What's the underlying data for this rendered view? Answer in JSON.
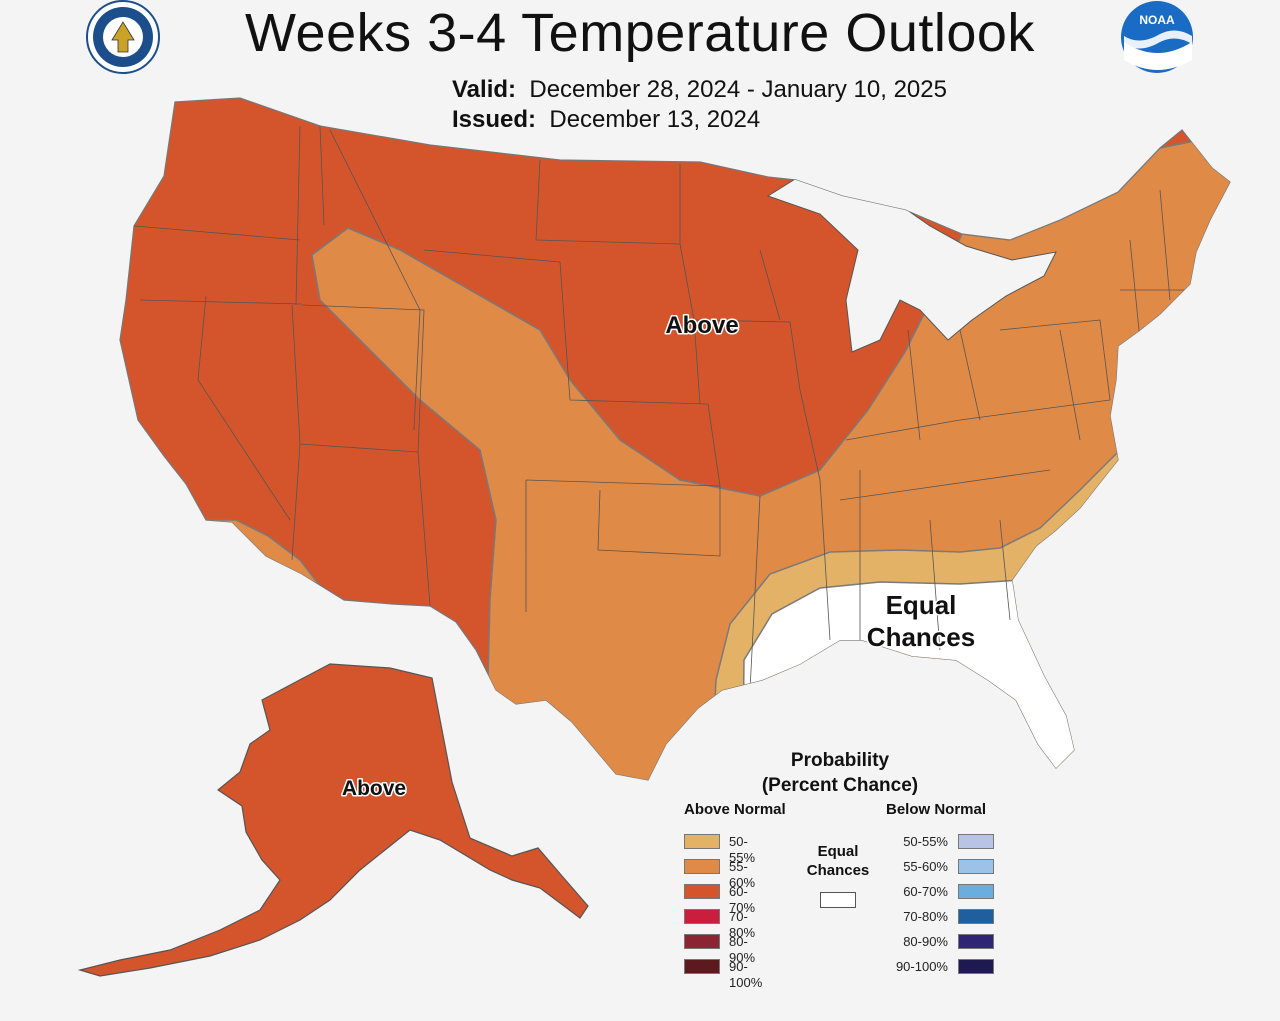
{
  "header": {
    "title": "Weeks 3-4 Temperature Outlook",
    "valid_label": "Valid:",
    "valid_range": "December 28, 2024 - January 10, 2025",
    "issued_label": "Issued:",
    "issued_date": "December 13, 2024"
  },
  "logos": {
    "left": "department-of-commerce-seal",
    "right": "noaa-logo",
    "right_text": "NOAA"
  },
  "map": {
    "labels": {
      "conus_above": "Above",
      "alaska_above": "Above",
      "equal_chances_line1": "Equal",
      "equal_chances_line2": "Chances"
    },
    "colors": {
      "above_50_55": "#e3b266",
      "above_55_60": "#e08a48",
      "above_60_70": "#d4552c",
      "equal_chances": "#ffffff",
      "background": "#f4f4f4"
    }
  },
  "legend": {
    "title_line1": "Probability",
    "title_line2": "(Percent Chance)",
    "above_header": "Above Normal",
    "below_header": "Below Normal",
    "equal_chances_line1": "Equal",
    "equal_chances_line2": "Chances",
    "above": [
      {
        "label": "50-55%",
        "color": "#e3b266"
      },
      {
        "label": "55-60%",
        "color": "#e08a48"
      },
      {
        "label": "60-70%",
        "color": "#d4552c"
      },
      {
        "label": "70-80%",
        "color": "#c91e3e"
      },
      {
        "label": "80-90%",
        "color": "#8b2433"
      },
      {
        "label": "90-100%",
        "color": "#5d1a1e"
      }
    ],
    "below": [
      {
        "label": "50-55%",
        "color": "#b8c3e6"
      },
      {
        "label": "55-60%",
        "color": "#9cc2e8"
      },
      {
        "label": "60-70%",
        "color": "#6aaee0"
      },
      {
        "label": "70-80%",
        "color": "#1f5f9e"
      },
      {
        "label": "80-90%",
        "color": "#2f2476"
      },
      {
        "label": "90-100%",
        "color": "#1e1a4f"
      }
    ]
  }
}
